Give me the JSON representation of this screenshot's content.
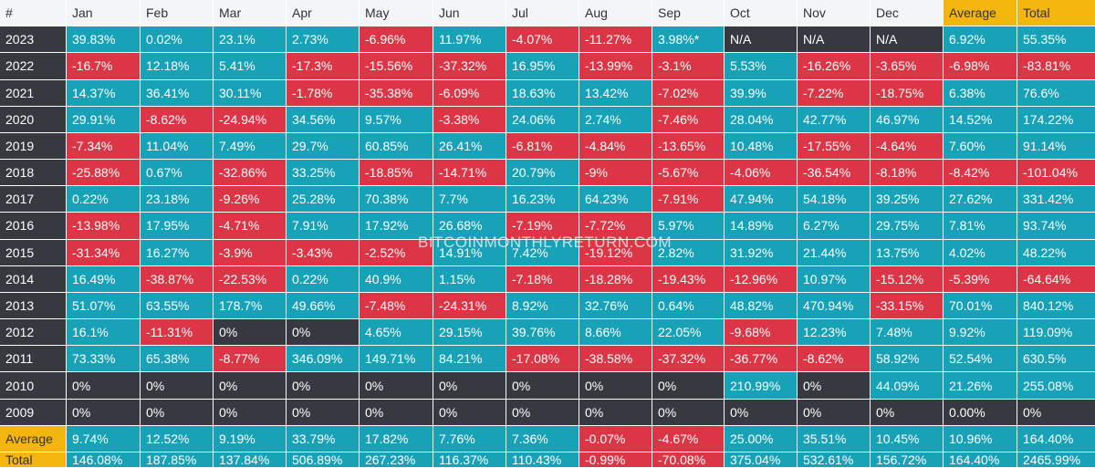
{
  "watermark": "BITCOINMONTHLYRETURN.COM",
  "chart_data": {
    "type": "table",
    "columns": [
      "#",
      "Jan",
      "Feb",
      "Mar",
      "Apr",
      "May",
      "Jun",
      "Jul",
      "Aug",
      "Sep",
      "Oct",
      "Nov",
      "Dec",
      "Average",
      "Total"
    ],
    "rows": [
      [
        "2023",
        "39.83%",
        "0.02%",
        "23.1%",
        "2.73%",
        "-6.96%",
        "11.97%",
        "-4.07%",
        "-11.27%",
        "3.98%*",
        "N/A",
        "N/A",
        "N/A",
        "6.92%",
        "55.35%"
      ],
      [
        "2022",
        "-16.7%",
        "12.18%",
        "5.41%",
        "-17.3%",
        "-15.56%",
        "-37.32%",
        "16.95%",
        "-13.99%",
        "-3.1%",
        "5.53%",
        "-16.26%",
        "-3.65%",
        "-6.98%",
        "-83.81%"
      ],
      [
        "2021",
        "14.37%",
        "36.41%",
        "30.11%",
        "-1.78%",
        "-35.38%",
        "-6.09%",
        "18.63%",
        "13.42%",
        "-7.02%",
        "39.9%",
        "-7.22%",
        "-18.75%",
        "6.38%",
        "76.6%"
      ],
      [
        "2020",
        "29.91%",
        "-8.62%",
        "-24.94%",
        "34.56%",
        "9.57%",
        "-3.38%",
        "24.06%",
        "2.74%",
        "-7.46%",
        "28.04%",
        "42.77%",
        "46.97%",
        "14.52%",
        "174.22%"
      ],
      [
        "2019",
        "-7.34%",
        "11.04%",
        "7.49%",
        "29.7%",
        "60.85%",
        "26.41%",
        "-6.81%",
        "-4.84%",
        "-13.65%",
        "10.48%",
        "-17.55%",
        "-4.64%",
        "7.60%",
        "91.14%"
      ],
      [
        "2018",
        "-25.88%",
        "0.67%",
        "-32.86%",
        "33.25%",
        "-18.85%",
        "-14.71%",
        "20.79%",
        "-9%",
        "-5.67%",
        "-4.06%",
        "-36.54%",
        "-8.18%",
        "-8.42%",
        "-101.04%"
      ],
      [
        "2017",
        "0.22%",
        "23.18%",
        "-9.26%",
        "25.28%",
        "70.38%",
        "7.7%",
        "16.23%",
        "64.23%",
        "-7.91%",
        "47.94%",
        "54.18%",
        "39.25%",
        "27.62%",
        "331.42%"
      ],
      [
        "2016",
        "-13.98%",
        "17.95%",
        "-4.71%",
        "7.91%",
        "17.92%",
        "26.68%",
        "-7.19%",
        "-7.72%",
        "5.97%",
        "14.89%",
        "6.27%",
        "29.75%",
        "7.81%",
        "93.74%"
      ],
      [
        "2015",
        "-31.34%",
        "16.27%",
        "-3.9%",
        "-3.43%",
        "-2.52%",
        "14.91%",
        "7.42%",
        "-19.12%",
        "2.82%",
        "31.92%",
        "21.44%",
        "13.75%",
        "4.02%",
        "48.22%"
      ],
      [
        "2014",
        "16.49%",
        "-38.87%",
        "-22.53%",
        "0.22%",
        "40.9%",
        "1.15%",
        "-7.18%",
        "-18.28%",
        "-19.43%",
        "-12.96%",
        "10.97%",
        "-15.12%",
        "-5.39%",
        "-64.64%"
      ],
      [
        "2013",
        "51.07%",
        "63.55%",
        "178.7%",
        "49.66%",
        "-7.48%",
        "-24.31%",
        "8.92%",
        "32.76%",
        "0.64%",
        "48.82%",
        "470.94%",
        "-33.15%",
        "70.01%",
        "840.12%"
      ],
      [
        "2012",
        "16.1%",
        "-11.31%",
        "0%",
        "0%",
        "4.65%",
        "29.15%",
        "39.76%",
        "8.66%",
        "22.05%",
        "-9.68%",
        "12.23%",
        "7.48%",
        "9.92%",
        "119.09%"
      ],
      [
        "2011",
        "73.33%",
        "65.38%",
        "-8.77%",
        "346.09%",
        "149.71%",
        "84.21%",
        "-17.08%",
        "-38.58%",
        "-37.32%",
        "-36.77%",
        "-8.62%",
        "58.92%",
        "52.54%",
        "630.5%"
      ],
      [
        "2010",
        "0%",
        "0%",
        "0%",
        "0%",
        "0%",
        "0%",
        "0%",
        "0%",
        "0%",
        "210.99%",
        "0%",
        "44.09%",
        "21.26%",
        "255.08%"
      ],
      [
        "2009",
        "0%",
        "0%",
        "0%",
        "0%",
        "0%",
        "0%",
        "0%",
        "0%",
        "0%",
        "0%",
        "0%",
        "0%",
        "0.00%",
        "0%"
      ],
      [
        "Average",
        "9.74%",
        "12.52%",
        "9.19%",
        "33.79%",
        "17.82%",
        "7.76%",
        "7.36%",
        "-0.07%",
        "-4.67%",
        "25.00%",
        "35.51%",
        "10.45%",
        "10.96%",
        "164.40%"
      ],
      [
        "Total",
        "146.08%",
        "187.85%",
        "137.84%",
        "506.89%",
        "267.23%",
        "116.37%",
        "110.43%",
        "-0.99%",
        "-70.08%",
        "375.04%",
        "532.61%",
        "156.72%",
        "164.40%",
        "2465.99%"
      ]
    ],
    "highlighted_columns": [
      "Average",
      "Total"
    ],
    "colors": {
      "positive": "#17a2b8",
      "negative": "#dc3545",
      "zero_or_na": "#363a40",
      "header": "#f3f5f7",
      "highlight": "#f5b50f",
      "row_label": "#363a40"
    }
  }
}
